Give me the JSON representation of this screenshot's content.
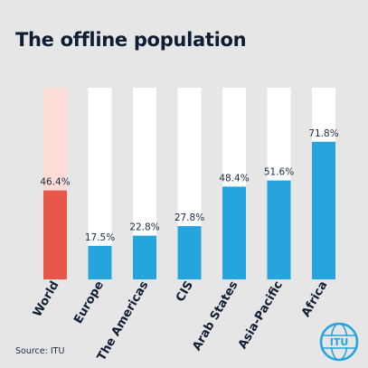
{
  "title": "The offline population",
  "source": "Source: ITU",
  "logo_text": "ITU",
  "colors": {
    "background": "#e6e6e6",
    "track": "#ffffff",
    "world_track": "#fddcd8",
    "world_bar": "#e8584a",
    "region_bar": "#26a4dd",
    "label": "#0f1d33",
    "value": "#1a2a40"
  },
  "chart_data": {
    "type": "bar",
    "title": "The offline population",
    "categories": [
      "World",
      "Europe",
      "The Americas",
      "CIS",
      "Arab States",
      "Asia-Pacific",
      "Africa"
    ],
    "values": [
      46.4,
      17.5,
      22.8,
      27.8,
      48.4,
      51.6,
      71.8
    ],
    "value_labels": [
      "46.4%",
      "17.5%",
      "22.8%",
      "27.8%",
      "48.4%",
      "51.6%",
      "71.8%"
    ],
    "ylim": [
      0,
      100
    ],
    "grid": false,
    "legend": "none",
    "highlight_category": "World"
  }
}
